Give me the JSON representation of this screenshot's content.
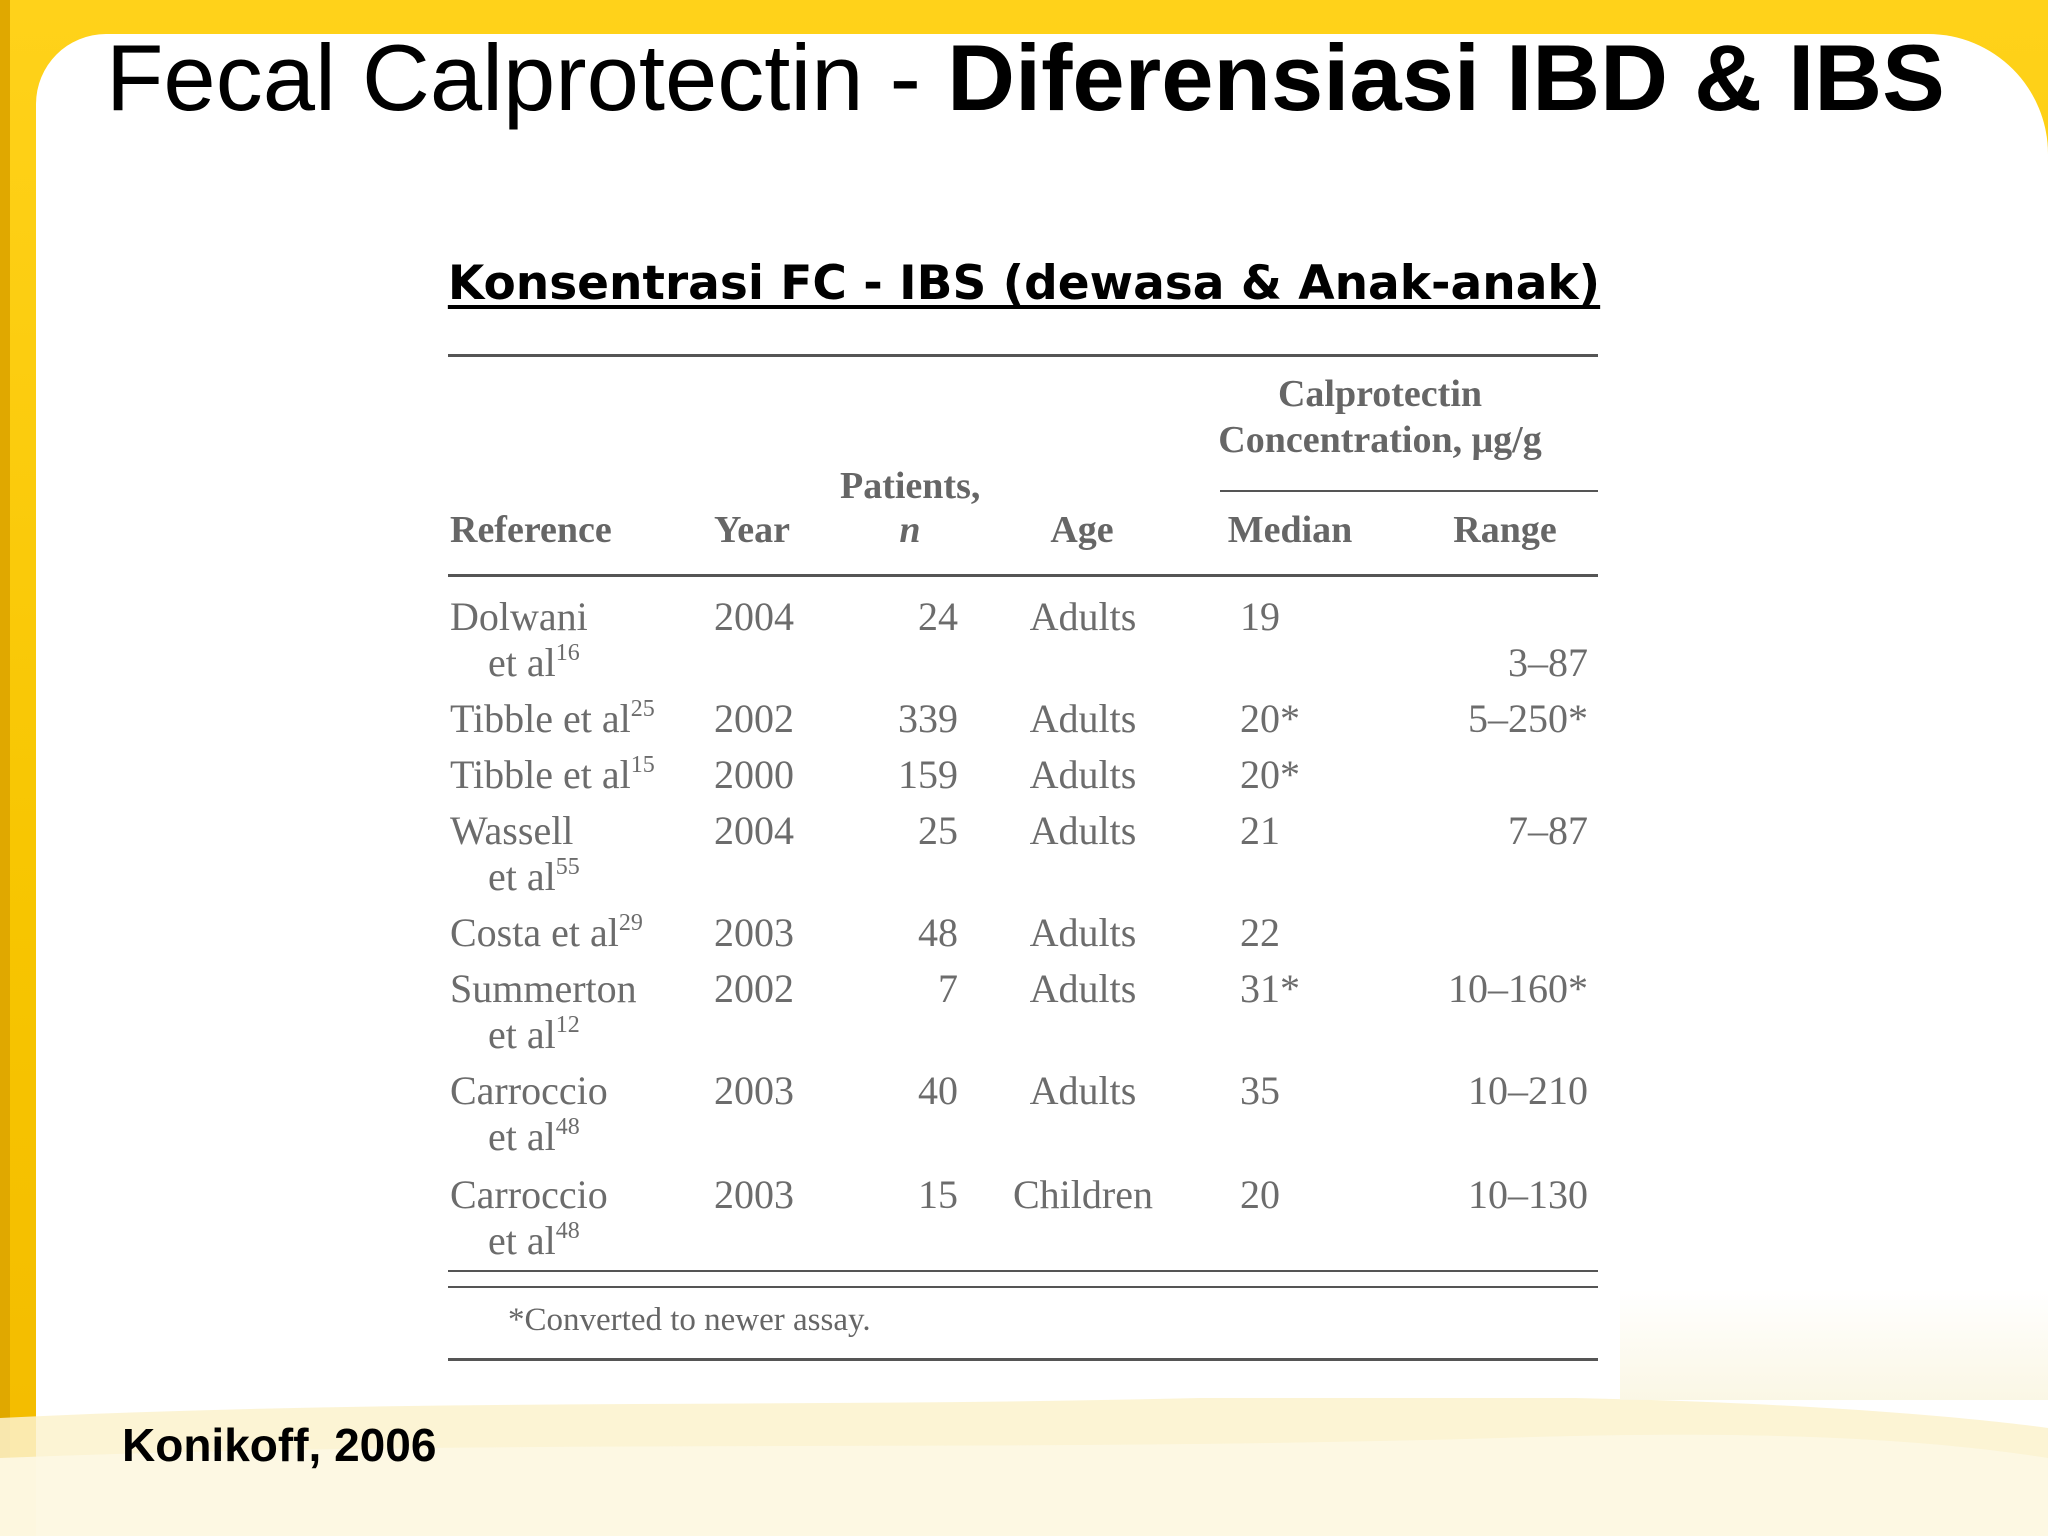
{
  "title": {
    "regular": "Fecal Calprotectin - ",
    "bold": "Diferensiasi IBD & IBS"
  },
  "subtitle": "Konsentrasi FC - IBS (dewasa & Anak-anak)",
  "table": {
    "group_header": {
      "line1": "Calprotectin",
      "line2": "Concentration, μg/g"
    },
    "columns": {
      "reference": "Reference",
      "year": "Year",
      "patients_line1": "Patients,",
      "patients_line2": "n",
      "age": "Age",
      "median": "Median",
      "range": "Range"
    },
    "rows": [
      {
        "ref_line1": "Dolwani",
        "ref_line2": "et al",
        "sup": "16",
        "year": "2004",
        "patients": "24",
        "age": "Adults",
        "median": "19",
        "range": "3–87"
      },
      {
        "ref_line1": "Tibble et al",
        "ref_line2": "",
        "sup": "25",
        "year": "2002",
        "patients": "339",
        "age": "Adults",
        "median": "20*",
        "range": "5–250*"
      },
      {
        "ref_line1": "Tibble et al",
        "ref_line2": "",
        "sup": "15",
        "year": "2000",
        "patients": "159",
        "age": "Adults",
        "median": "20*",
        "range": ""
      },
      {
        "ref_line1": "Wassell",
        "ref_line2": "et al",
        "sup": "55",
        "year": "2004",
        "patients": "25",
        "age": "Adults",
        "median": "21",
        "range": "7–87"
      },
      {
        "ref_line1": "Costa et al",
        "ref_line2": "",
        "sup": "29",
        "year": "2003",
        "patients": "48",
        "age": "Adults",
        "median": "22",
        "range": ""
      },
      {
        "ref_line1": "Summerton",
        "ref_line2": "et al",
        "sup": "12",
        "year": "2002",
        "patients": "7",
        "age": "Adults",
        "median": "31*",
        "range": "10–160*"
      },
      {
        "ref_line1": "Carroccio",
        "ref_line2": "et al",
        "sup": "48",
        "year": "2003",
        "patients": "40",
        "age": "Adults",
        "median": "35",
        "range": "10–210"
      },
      {
        "ref_line1": "Carroccio",
        "ref_line2": "et al",
        "sup": "48",
        "year": "2003",
        "patients": "15",
        "age": "Children",
        "median": "20",
        "range": "10–130"
      }
    ],
    "footnote": "*Converted to newer assay."
  },
  "author": "Konikoff, 2006",
  "colors": {
    "frame": "#f6c200",
    "panel": "#ffffff",
    "table_text": "#6c6c6c"
  }
}
